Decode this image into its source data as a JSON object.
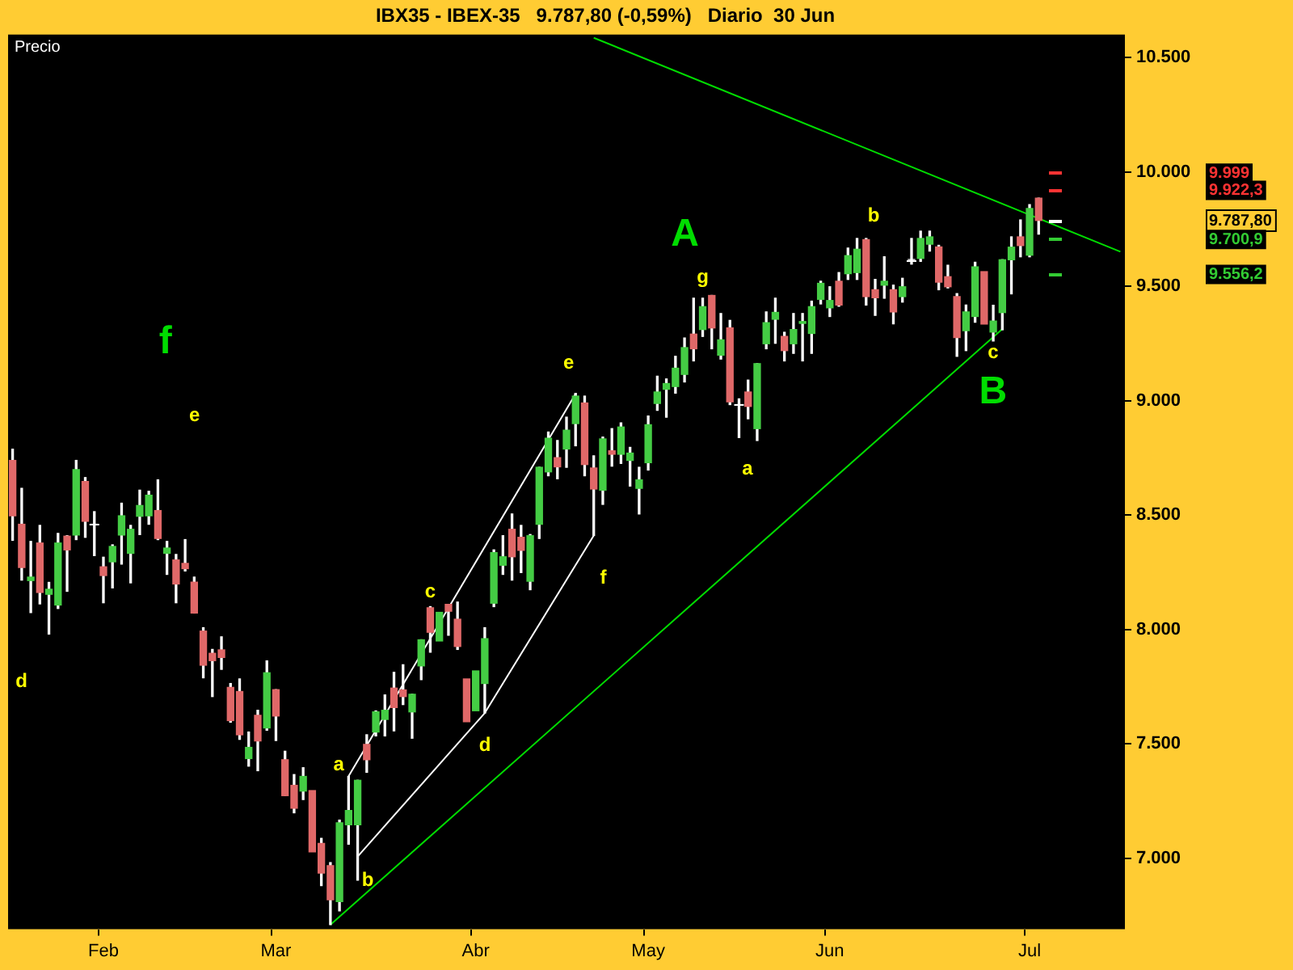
{
  "chart_data": {
    "type": "candlestick",
    "title": "IBX35 - IBEX-35   9.787,80 (-0,59%)   Diario  30 Jun",
    "ylabel": "Precio",
    "categories": [
      null,
      null,
      null,
      null,
      null,
      null,
      null,
      null,
      null,
      null,
      "Feb",
      null,
      null,
      null,
      null,
      null,
      null,
      null,
      null,
      null,
      null,
      null,
      null,
      null,
      null,
      null,
      null,
      null,
      null,
      "Mar",
      null,
      null,
      null,
      null,
      null,
      null,
      null,
      null,
      null,
      null,
      null,
      null,
      null,
      null,
      null,
      null,
      null,
      null,
      null,
      null,
      null,
      "Abr",
      null,
      null,
      null,
      null,
      null,
      null,
      null,
      null,
      null,
      null,
      null,
      null,
      null,
      null,
      null,
      null,
      null,
      null,
      "May",
      null,
      null,
      null,
      null,
      null,
      null,
      null,
      null,
      null,
      null,
      null,
      null,
      null,
      null,
      null,
      null,
      null,
      null,
      null,
      "Jun",
      null,
      null,
      null,
      null,
      null,
      null,
      null,
      null,
      null,
      null,
      null,
      null,
      null,
      null,
      null,
      null,
      null,
      null,
      null,
      null,
      null,
      "Jul",
      null,
      null,
      null,
      null,
      null,
      null,
      null,
      null,
      null,
      null
    ],
    "ohlc": [
      [
        8739,
        8788,
        8390,
        8497
      ],
      [
        8460,
        8617,
        8216,
        8271
      ],
      [
        8214,
        8385,
        8074,
        8229
      ],
      [
        8378,
        8455,
        8112,
        8162
      ],
      [
        8154,
        8206,
        7980,
        8176
      ],
      [
        8107,
        8420,
        8092,
        8378
      ],
      [
        8408,
        8410,
        8167,
        8348
      ],
      [
        8413,
        8739,
        8393,
        8699
      ],
      [
        8647,
        8664,
        8403,
        8473
      ],
      [
        8460,
        8515,
        8323,
        8460
      ],
      [
        8274,
        8316,
        8117,
        8236
      ],
      [
        8296,
        8370,
        8182,
        8363
      ],
      [
        8413,
        8552,
        8286,
        8497
      ],
      [
        8333,
        8455,
        8204,
        8438
      ],
      [
        8495,
        8609,
        8415,
        8542
      ],
      [
        8497,
        8604,
        8460,
        8587
      ],
      [
        8520,
        8654,
        8393,
        8398
      ],
      [
        8333,
        8385,
        8241,
        8356
      ],
      [
        8304,
        8328,
        8117,
        8199
      ],
      [
        8289,
        8393,
        8256,
        8266
      ],
      [
        8207,
        8229,
        8072,
        8072
      ],
      [
        7993,
        8008,
        7789,
        7844
      ],
      [
        7896,
        7913,
        7707,
        7864
      ],
      [
        7911,
        7968,
        7826,
        7878
      ],
      [
        7747,
        7764,
        7595,
        7602
      ],
      [
        7729,
        7784,
        7520,
        7540
      ],
      [
        7436,
        7552,
        7403,
        7485
      ],
      [
        7625,
        7647,
        7383,
        7513
      ],
      [
        7570,
        7863,
        7560,
        7811
      ],
      [
        7737,
        7737,
        7515,
        7622
      ],
      [
        7431,
        7468,
        7274,
        7274
      ],
      [
        7319,
        7366,
        7199,
        7219
      ],
      [
        7294,
        7396,
        7257,
        7358
      ],
      [
        7296,
        7296,
        7028,
        7028
      ],
      [
        7065,
        7087,
        6881,
        6936
      ],
      [
        6968,
        6981,
        6710,
        6819
      ],
      [
        6811,
        7167,
        6770,
        7155
      ],
      [
        7147,
        7358,
        7062,
        7209
      ],
      [
        7147,
        7341,
        6905,
        7341
      ],
      [
        7498,
        7540,
        7376,
        7431
      ],
      [
        7552,
        7644,
        7535,
        7640
      ],
      [
        7607,
        7714,
        7535,
        7647
      ],
      [
        7744,
        7813,
        7557,
        7659
      ],
      [
        7736,
        7846,
        7672,
        7707
      ],
      [
        7640,
        7717,
        7525,
        7717
      ],
      [
        7841,
        7955,
        7781,
        7955
      ],
      [
        8095,
        8100,
        7901,
        7988
      ],
      [
        7950,
        8075,
        7943,
        8075
      ],
      [
        8110,
        8110,
        7975,
        8080
      ],
      [
        8045,
        8120,
        7913,
        7926
      ],
      [
        7784,
        7789,
        7590,
        7597
      ],
      [
        7645,
        7819,
        7635,
        7819
      ],
      [
        7764,
        8008,
        7635,
        7960
      ],
      [
        8115,
        8348,
        8100,
        8336
      ],
      [
        8281,
        8410,
        8241,
        8318
      ],
      [
        8438,
        8505,
        8216,
        8318
      ],
      [
        8403,
        8455,
        8249,
        8346
      ],
      [
        8211,
        8415,
        8174,
        8410
      ],
      [
        8460,
        8709,
        8398,
        8709
      ],
      [
        8689,
        8863,
        8672,
        8836
      ],
      [
        8751,
        8826,
        8659,
        8711
      ],
      [
        8789,
        8928,
        8709,
        8871
      ],
      [
        8900,
        9032,
        8803,
        9020
      ],
      [
        8990,
        9020,
        8672,
        8721
      ],
      [
        8706,
        8759,
        8411,
        8614
      ],
      [
        8609,
        8841,
        8547,
        8833
      ],
      [
        8781,
        8878,
        8714,
        8766
      ],
      [
        8766,
        8903,
        8726,
        8885
      ],
      [
        8739,
        8796,
        8627,
        8771
      ],
      [
        8617,
        8709,
        8505,
        8654
      ],
      [
        8729,
        8933,
        8697,
        8895
      ],
      [
        8988,
        9107,
        8958,
        9038
      ],
      [
        9050,
        9095,
        8928,
        9075
      ],
      [
        9062,
        9194,
        9033,
        9142
      ],
      [
        9115,
        9274,
        9082,
        9232
      ],
      [
        9291,
        9448,
        9174,
        9227
      ],
      [
        9311,
        9448,
        9281,
        9411
      ],
      [
        9460,
        9460,
        9227,
        9318
      ],
      [
        9199,
        9381,
        9182,
        9266
      ],
      [
        9318,
        9351,
        8983,
        8995
      ],
      [
        8983,
        9008,
        8839,
        8983
      ],
      [
        9038,
        9090,
        8921,
        8975
      ],
      [
        8878,
        9162,
        8826,
        9162
      ],
      [
        9249,
        9388,
        9227,
        9341
      ],
      [
        9356,
        9448,
        9251,
        9386
      ],
      [
        9281,
        9299,
        9174,
        9219
      ],
      [
        9249,
        9381,
        9207,
        9311
      ],
      [
        9338,
        9381,
        9174,
        9346
      ],
      [
        9294,
        9435,
        9207,
        9411
      ],
      [
        9443,
        9522,
        9423,
        9513
      ],
      [
        9406,
        9498,
        9368,
        9438
      ],
      [
        9522,
        9560,
        9413,
        9418
      ],
      [
        9555,
        9667,
        9530,
        9634
      ],
      [
        9560,
        9709,
        9530,
        9662
      ],
      [
        9704,
        9709,
        9418,
        9455
      ],
      [
        9485,
        9530,
        9373,
        9450
      ],
      [
        9505,
        9629,
        9448,
        9522
      ],
      [
        9485,
        9505,
        9336,
        9388
      ],
      [
        9455,
        9535,
        9431,
        9498
      ],
      [
        9617,
        9709,
        9597,
        9617
      ],
      [
        9622,
        9741,
        9609,
        9709
      ],
      [
        9684,
        9741,
        9654,
        9716
      ],
      [
        9672,
        9679,
        9485,
        9518
      ],
      [
        9542,
        9592,
        9493,
        9498
      ],
      [
        9455,
        9468,
        9194,
        9276
      ],
      [
        9306,
        9418,
        9219,
        9388
      ],
      [
        9368,
        9605,
        9343,
        9585
      ],
      [
        9564,
        9564,
        9330,
        9335
      ],
      [
        9300,
        9417,
        9261,
        9348
      ],
      [
        9385,
        9616,
        9310,
        9616
      ],
      [
        9616,
        9716,
        9467,
        9671
      ],
      [
        9716,
        9790,
        9629,
        9678
      ],
      [
        9636,
        9857,
        9629,
        9840
      ],
      [
        9885,
        9885,
        9728,
        9787.8
      ],
      null,
      null,
      null,
      null,
      null,
      null,
      null,
      null,
      null
    ],
    "series": [
      {
        "type": "line",
        "color": "#00dd00",
        "values": [
          null,
          null,
          null,
          null,
          null,
          null,
          null,
          null,
          null,
          null,
          null,
          null,
          null,
          null,
          null,
          null,
          null,
          null,
          null,
          null,
          null,
          null,
          null,
          null,
          null,
          null,
          null,
          null,
          null,
          null,
          null,
          null,
          null,
          null,
          null,
          null,
          null,
          null,
          null,
          null,
          null,
          null,
          null,
          null,
          null,
          null,
          null,
          null,
          null,
          null,
          null,
          null,
          null,
          null,
          null,
          null,
          null,
          null,
          null,
          null,
          null,
          null,
          null,
          null,
          10586,
          null,
          null,
          null,
          null,
          null,
          null,
          null,
          null,
          null,
          null,
          null,
          null,
          null,
          null,
          null,
          null,
          null,
          null,
          null,
          null,
          null,
          null,
          null,
          null,
          null,
          null,
          null,
          null,
          null,
          null,
          null,
          null,
          null,
          null,
          null,
          null,
          null,
          null,
          null,
          null,
          null,
          null,
          null,
          null,
          null,
          null,
          null,
          null,
          null,
          null,
          null,
          null,
          null,
          null,
          null,
          null,
          null,
          9651
        ]
      },
      {
        "type": "line",
        "color": "#00dd00",
        "values": [
          null,
          null,
          null,
          null,
          null,
          null,
          null,
          null,
          null,
          null,
          null,
          null,
          null,
          null,
          null,
          null,
          null,
          null,
          null,
          null,
          null,
          null,
          null,
          null,
          null,
          null,
          null,
          null,
          null,
          null,
          null,
          null,
          null,
          null,
          null,
          6710,
          null,
          null,
          null,
          null,
          null,
          null,
          null,
          null,
          null,
          null,
          null,
          null,
          null,
          null,
          null,
          null,
          null,
          null,
          null,
          null,
          null,
          null,
          null,
          null,
          null,
          null,
          null,
          null,
          null,
          null,
          null,
          null,
          null,
          null,
          null,
          null,
          null,
          null,
          null,
          null,
          null,
          null,
          null,
          null,
          null,
          null,
          null,
          null,
          null,
          null,
          null,
          null,
          null,
          null,
          null,
          null,
          null,
          null,
          null,
          null,
          null,
          null,
          null,
          null,
          null,
          null,
          null,
          null,
          null,
          null,
          null,
          null,
          null,
          9313,
          null,
          null,
          null,
          null,
          null,
          null,
          null,
          null,
          null,
          null,
          null,
          null,
          null
        ]
      },
      {
        "type": "line",
        "color": "#ffffff",
        "values": [
          null,
          null,
          null,
          null,
          null,
          null,
          null,
          null,
          null,
          null,
          null,
          null,
          null,
          null,
          null,
          null,
          null,
          null,
          null,
          null,
          null,
          null,
          null,
          null,
          null,
          null,
          null,
          null,
          null,
          null,
          null,
          null,
          null,
          null,
          null,
          null,
          null,
          7359,
          null,
          null,
          null,
          null,
          null,
          null,
          null,
          null,
          null,
          null,
          null,
          null,
          null,
          null,
          null,
          null,
          null,
          null,
          null,
          null,
          null,
          null,
          null,
          null,
          9030,
          null,
          null,
          null,
          null,
          null,
          null,
          null,
          null,
          null,
          null,
          null,
          null,
          null,
          null,
          null,
          null,
          null,
          null,
          null,
          null,
          null,
          null,
          null,
          null,
          null,
          null,
          null,
          null,
          null,
          null,
          null,
          null,
          null,
          null,
          null,
          null,
          null,
          null,
          null,
          null,
          null,
          null,
          null,
          null,
          null,
          null,
          null,
          null,
          null,
          null,
          null,
          null,
          null,
          null,
          null,
          null,
          null,
          null,
          null,
          null
        ]
      },
      {
        "type": "line",
        "color": "#ffffff",
        "values": [
          null,
          null,
          null,
          null,
          null,
          null,
          null,
          null,
          null,
          null,
          null,
          null,
          null,
          null,
          null,
          null,
          null,
          null,
          null,
          null,
          null,
          null,
          null,
          null,
          null,
          null,
          null,
          null,
          null,
          null,
          null,
          null,
          null,
          null,
          null,
          null,
          null,
          null,
          7008,
          null,
          null,
          null,
          null,
          null,
          null,
          null,
          null,
          null,
          null,
          null,
          null,
          null,
          7635,
          null,
          null,
          null,
          null,
          null,
          null,
          null,
          null,
          null,
          null,
          null,
          8411,
          null,
          null,
          null,
          null,
          null,
          null,
          null,
          null,
          null,
          null,
          null,
          null,
          null,
          null,
          null,
          null,
          null,
          null,
          null,
          null,
          null,
          null,
          null,
          null,
          null,
          null,
          null,
          null,
          null,
          null,
          null,
          null,
          null,
          null,
          null,
          null,
          null,
          null,
          null,
          null,
          null,
          null,
          null,
          null,
          null,
          null,
          null,
          null,
          null,
          null,
          null,
          null,
          null,
          null,
          null,
          null,
          null,
          null
        ]
      }
    ],
    "ylim": [
      6690,
      10600
    ],
    "yticks": [
      {
        "value": 7000,
        "label": "7.000"
      },
      {
        "value": 7500,
        "label": "7.500"
      },
      {
        "value": 8000,
        "label": "8.000"
      },
      {
        "value": 8500,
        "label": "8.500"
      },
      {
        "value": 9000,
        "label": "9.000"
      },
      {
        "value": 9500,
        "label": "9.500"
      },
      {
        "value": 10000,
        "label": "10.000"
      },
      {
        "value": 10500,
        "label": "10.500"
      }
    ],
    "annotations": [
      "f",
      "e",
      "d",
      "a",
      "b",
      "c",
      "d",
      "e",
      "f",
      "A",
      "g",
      "a",
      "b",
      "c",
      "B",
      "9.999",
      "9.922,3",
      "9.787,80",
      "9.700,9",
      "9.556,2"
    ]
  }
}
